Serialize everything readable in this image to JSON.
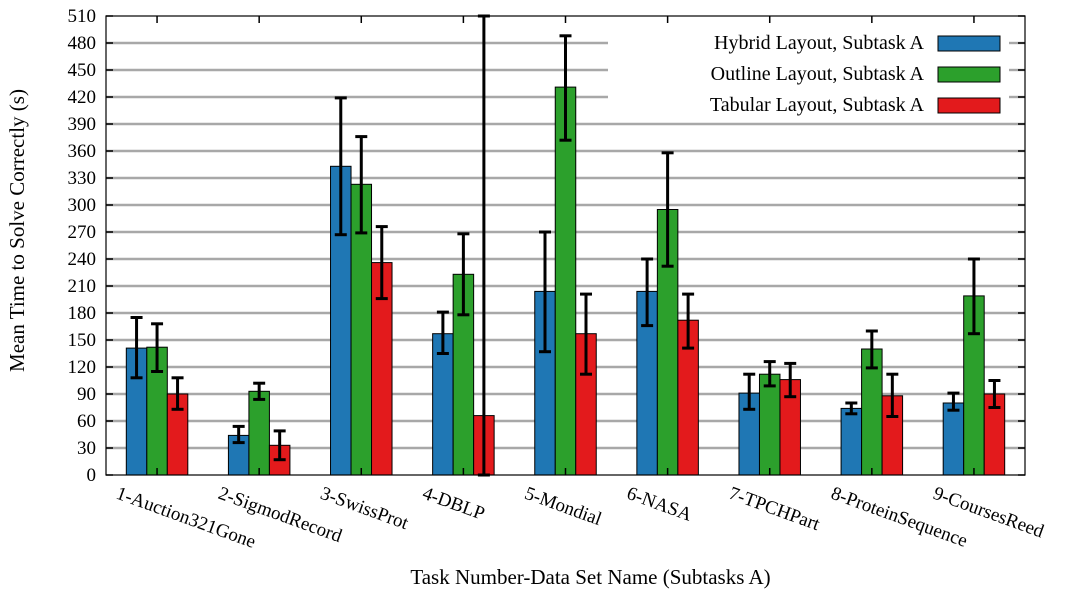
{
  "chart_data": {
    "type": "bar",
    "title": "",
    "xlabel": "Task Number-Data Set Name (Subtasks A)",
    "ylabel": "Mean Time to Solve Correctly (s)",
    "ylim": [
      0,
      510
    ],
    "yticks": [
      0,
      30,
      60,
      90,
      120,
      150,
      180,
      210,
      240,
      270,
      300,
      330,
      360,
      390,
      420,
      450,
      480,
      510
    ],
    "grid": "horizontal",
    "legend_position": "top-right",
    "categories": [
      "1-Auction321Gone",
      "2-SigmodRecord",
      "3-SwissProt",
      "4-DBLP",
      "5-Mondial",
      "6-NASA",
      "7-TPCHPart",
      "8-ProteinSequence",
      "9-CoursesReed"
    ],
    "series": [
      {
        "name": "Hybrid Layout, Subtask A",
        "color": "#1f77b4",
        "values": [
          141,
          44,
          343,
          157,
          204,
          204,
          91,
          74,
          80
        ],
        "error_low": [
          108,
          36,
          267,
          135,
          137,
          166,
          73,
          68,
          72
        ],
        "error_high": [
          175,
          54,
          419,
          181,
          270,
          240,
          112,
          80,
          91
        ]
      },
      {
        "name": "Outline Layout, Subtask A",
        "color": "#2ca02c",
        "values": [
          142,
          93,
          323,
          223,
          431,
          295,
          112,
          140,
          199
        ],
        "error_low": [
          115,
          84,
          269,
          178,
          372,
          232,
          99,
          119,
          157
        ],
        "error_high": [
          168,
          102,
          376,
          268,
          488,
          358,
          126,
          160,
          240
        ]
      },
      {
        "name": "Tabular Layout, Subtask A",
        "color": "#e31a1c",
        "values": [
          90,
          33,
          236,
          66,
          157,
          172,
          106,
          88,
          90
        ],
        "error_low": [
          73,
          17,
          196,
          0,
          112,
          141,
          87,
          65,
          75
        ],
        "error_high": [
          108,
          49,
          276,
          510,
          201,
          201,
          124,
          112,
          105
        ]
      }
    ]
  }
}
